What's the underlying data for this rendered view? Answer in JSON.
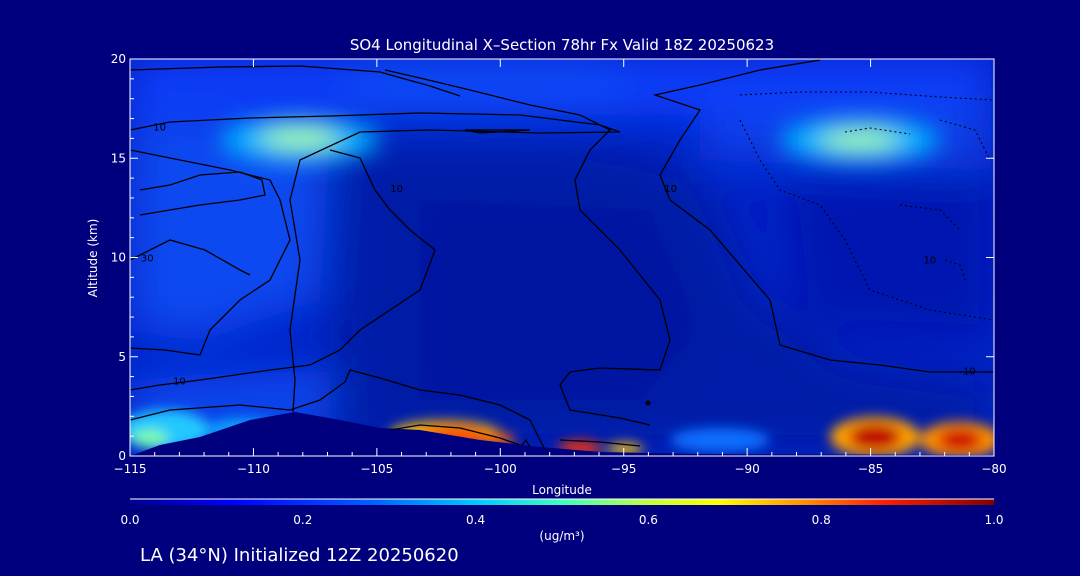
{
  "chart_data": {
    "type": "heatmap",
    "title": "SO4 Longitudinal X–Section 78hr  Fx Valid 18Z 20250623",
    "xlabel": "Longitude",
    "ylabel": "Altitude (km)",
    "xlim": [
      -115,
      -80
    ],
    "ylim": [
      0,
      20
    ],
    "x_ticks": [
      -115,
      -110,
      -105,
      -100,
      -95,
      -90,
      -85,
      -80
    ],
    "y_ticks": [
      0,
      5,
      10,
      15,
      20
    ],
    "colorbar": {
      "label": "(ug/m³)",
      "min": 0.0,
      "max": 1.0,
      "tick_values": [
        0.0,
        0.2,
        0.4,
        0.6,
        0.8,
        1.0
      ],
      "tick_labels": [
        "0.0",
        "0.2",
        "0.4",
        "0.6",
        "0.8",
        "1.0"
      ]
    },
    "contour_labels": [
      {
        "text": "10",
        "lon": -113.8,
        "alt": 16.4
      },
      {
        "text": "30",
        "lon": -114.3,
        "alt": 9.8
      },
      {
        "text": "10",
        "lon": -113.0,
        "alt": 3.6
      },
      {
        "text": "10",
        "lon": -104.2,
        "alt": 13.3
      },
      {
        "text": "10",
        "lon": -93.1,
        "alt": 13.3
      },
      {
        "text": "10",
        "lon": -81.0,
        "alt": 4.1
      },
      {
        "text": "10",
        "lon": -82.6,
        "alt": 9.7
      }
    ],
    "hotspots": [
      {
        "lon": -108.5,
        "alt": 16.0,
        "value": 0.45
      },
      {
        "lon": -85.3,
        "alt": 15.9,
        "value": 0.45
      },
      {
        "lon": -102.0,
        "alt": 1.1,
        "value": 0.85
      },
      {
        "lon": -100.2,
        "alt": 0.8,
        "value": 0.75
      },
      {
        "lon": -96.6,
        "alt": 0.3,
        "value": 0.75
      },
      {
        "lon": -94.5,
        "alt": 0.3,
        "value": 0.6
      },
      {
        "lon": -85.0,
        "alt": 0.7,
        "value": 0.95
      },
      {
        "lon": -81.3,
        "alt": 0.6,
        "value": 0.9
      },
      {
        "lon": -114.5,
        "alt": 1.0,
        "value": 0.4
      },
      {
        "lon": -112.0,
        "alt": 1.5,
        "value": 0.3
      }
    ],
    "grid": false
  },
  "footer": {
    "caption": "LA (34°N) Initialized 12Z 20250620"
  }
}
